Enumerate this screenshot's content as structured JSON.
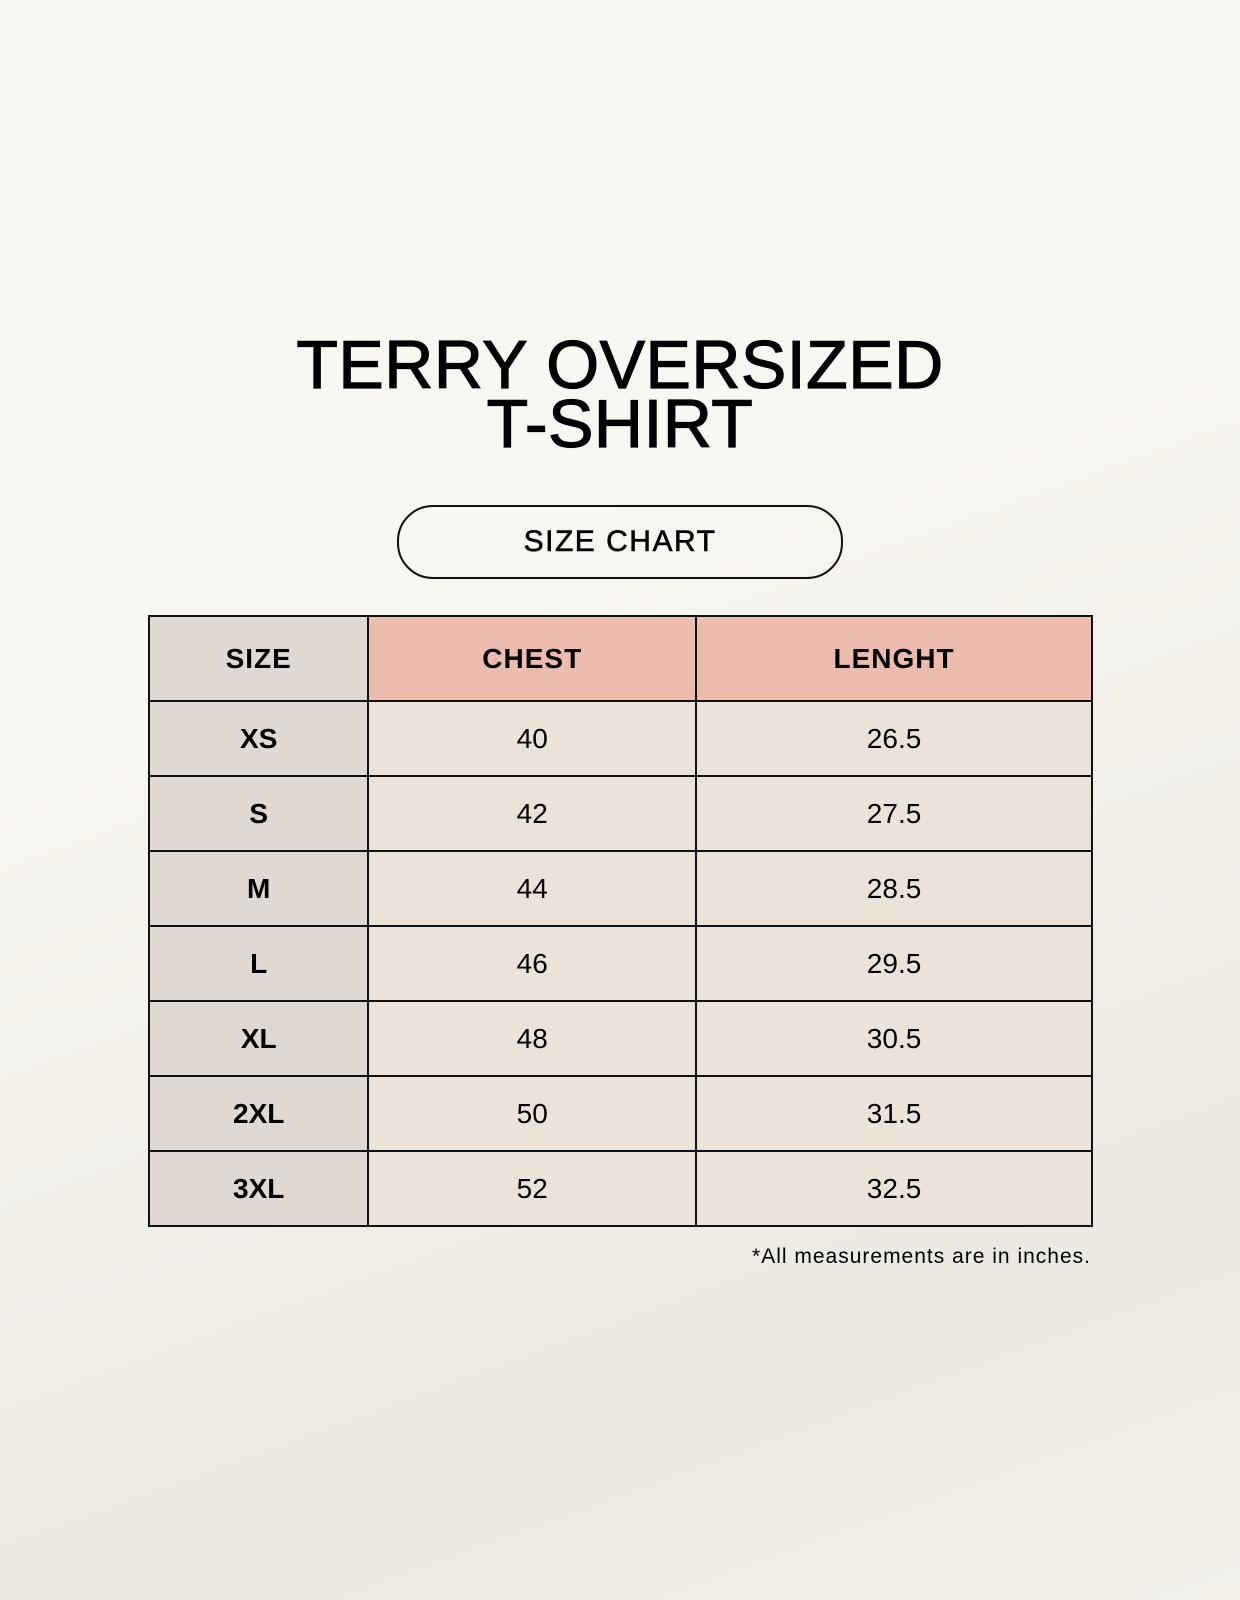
{
  "title": {
    "line1": "TERRY OVERSIZED",
    "line2": "T-SHIRT"
  },
  "subtitle": "SIZE CHART",
  "table": {
    "headers": [
      "SIZE",
      "CHEST",
      "LENGHT"
    ],
    "rows": [
      [
        "XS",
        "40",
        "26.5"
      ],
      [
        "S",
        "42",
        "27.5"
      ],
      [
        "M",
        "44",
        "28.5"
      ],
      [
        "L",
        "46",
        "29.5"
      ],
      [
        "XL",
        "48",
        "30.5"
      ],
      [
        "2XL",
        "50",
        "31.5"
      ],
      [
        "3XL",
        "52",
        "32.5"
      ]
    ]
  },
  "footnote": "*All measurements are in inches.",
  "colors": {
    "size_column": "#e0d8d3",
    "header_accent": "#ecbcae",
    "value_cells": "#ebe3d9"
  }
}
